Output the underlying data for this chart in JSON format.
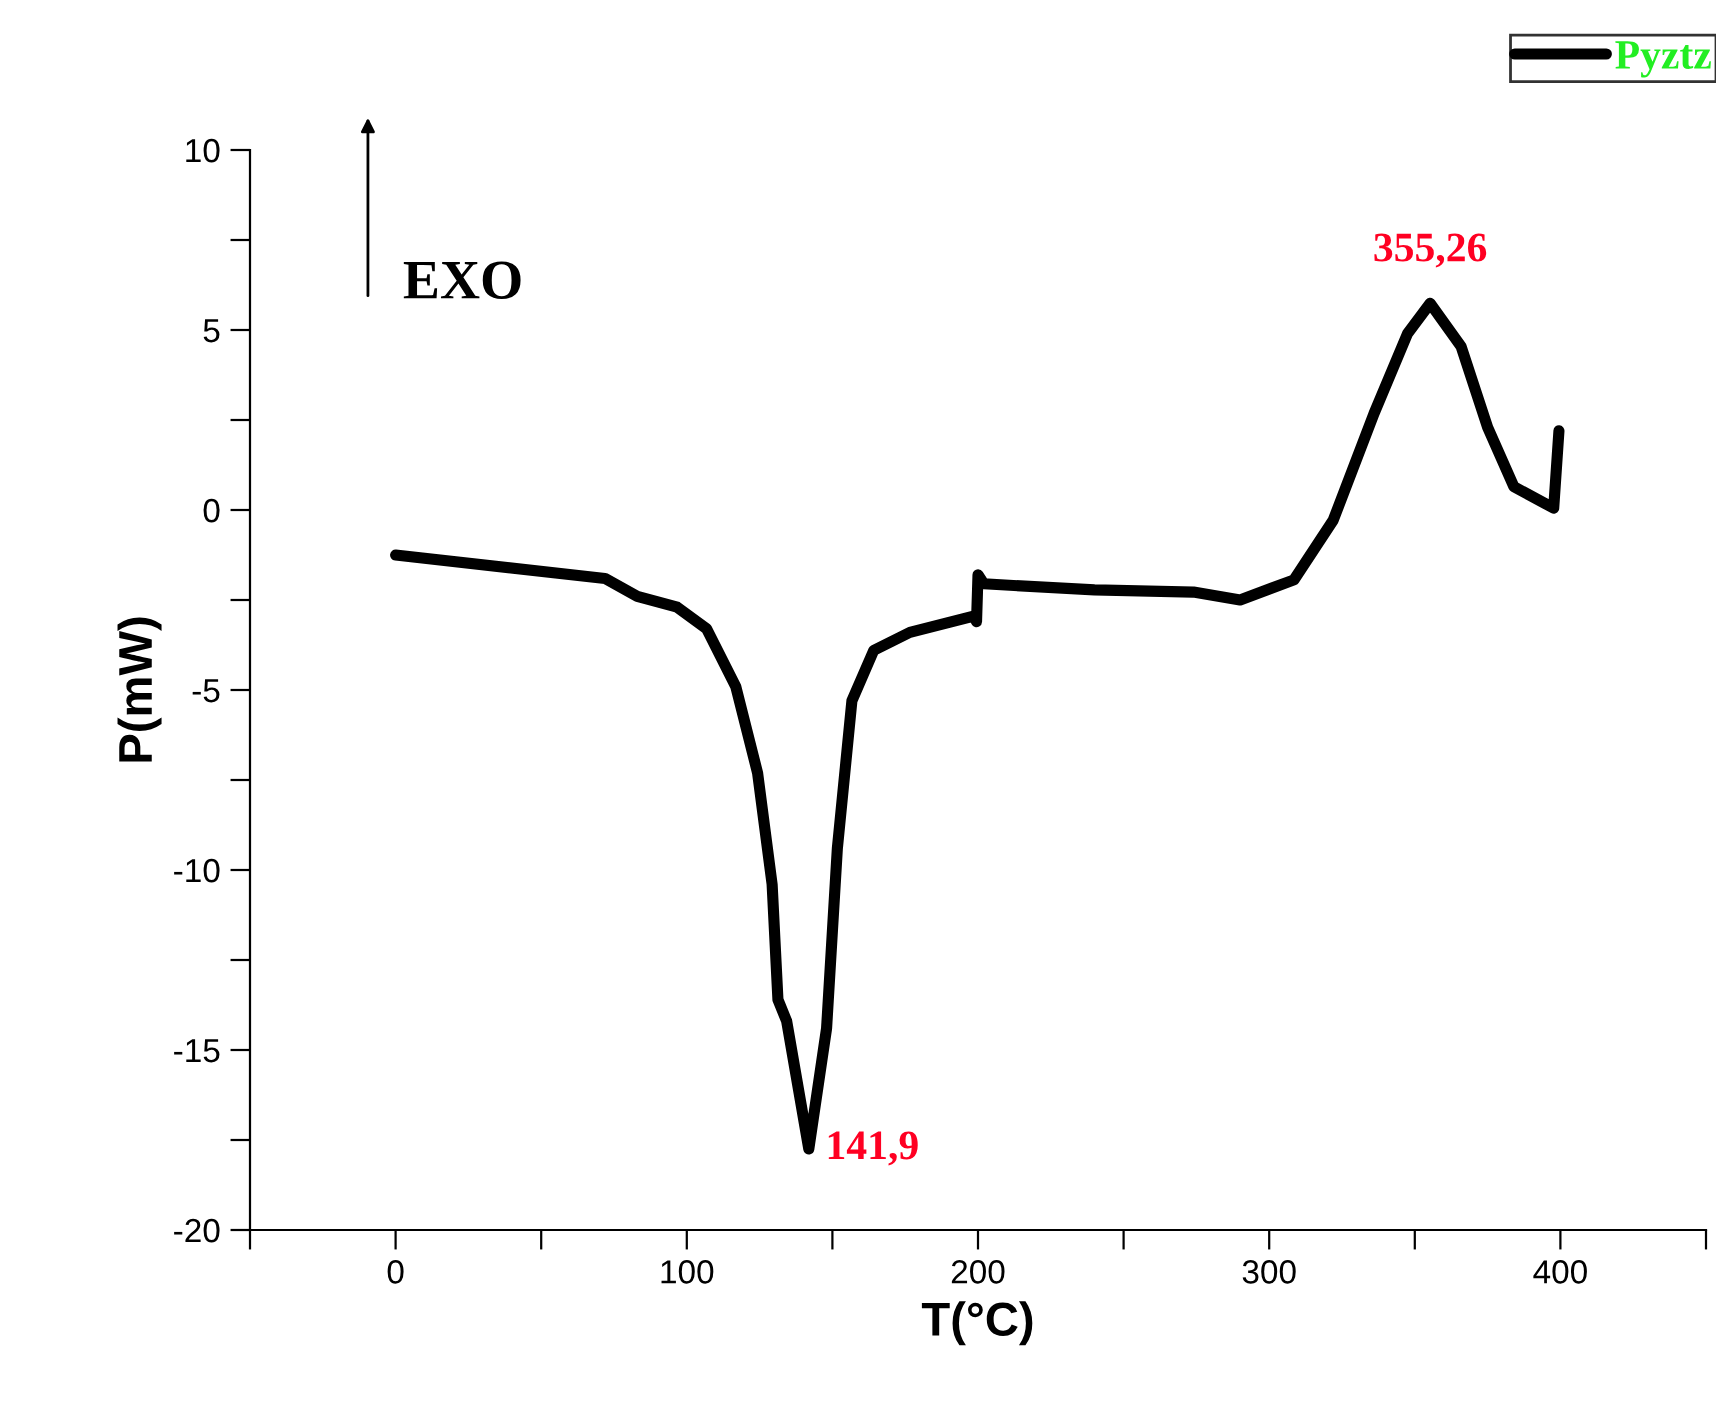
{
  "chart_data": {
    "type": "line",
    "xlabel": "T(°C)",
    "ylabel": "P(mW)",
    "x": [
      0,
      71.9,
      83,
      96.7,
      106.8,
      116.8,
      124.3,
      129.3,
      131.3,
      134.3,
      141.9,
      148,
      151.7,
      156.7,
      164.2,
      176.6,
      198.5,
      199.5,
      200,
      202,
      240,
      274,
      290,
      308.5,
      322,
      336,
      347.5,
      355.26,
      365.9,
      375,
      384,
      397.7,
      399.5
    ],
    "series": [
      {
        "name": "Pyztz",
        "color": "#000000",
        "values": [
          -1.25,
          -1.9,
          -2.4,
          -2.7,
          -3.3,
          -4.9,
          -7.3,
          -10.4,
          -13.6,
          -14.2,
          -17.75,
          -14.4,
          -9.4,
          -5.3,
          -3.9,
          -3.4,
          -2.95,
          -3.1,
          -1.8,
          -2.05,
          -2.22,
          -2.28,
          -2.5,
          -1.94,
          -0.28,
          2.68,
          4.9,
          5.74,
          4.54,
          2.3,
          0.65,
          0.05,
          2.2
        ]
      }
    ],
    "xlim": [
      -50,
      450
    ],
    "ylim": [
      -20,
      10
    ],
    "xticks": [
      {
        "value": -50,
        "label": null
      },
      0,
      {
        "value": 50,
        "label": null
      },
      100,
      {
        "value": 150,
        "label": null
      },
      200,
      {
        "value": 250,
        "label": null
      },
      300,
      {
        "value": 350,
        "label": null
      },
      400,
      {
        "value": 450,
        "label": null
      }
    ],
    "yticks": [
      -20,
      {
        "value": -17.5,
        "label": null
      },
      -15,
      {
        "value": -12.5,
        "label": null
      },
      -10,
      {
        "value": -7.5,
        "label": null
      },
      -5,
      {
        "value": -2.5,
        "label": null
      },
      0,
      {
        "value": 2.5,
        "label": null
      },
      5,
      {
        "value": 7.5,
        "label": null
      },
      10
    ],
    "annotations": [
      {
        "text": "141,9",
        "x": 141.9,
        "y": -17.75
      },
      {
        "text": "355,26",
        "x": 355.26,
        "y": 5.74
      },
      "EXO"
    ],
    "legend": "top right",
    "grid": false
  }
}
